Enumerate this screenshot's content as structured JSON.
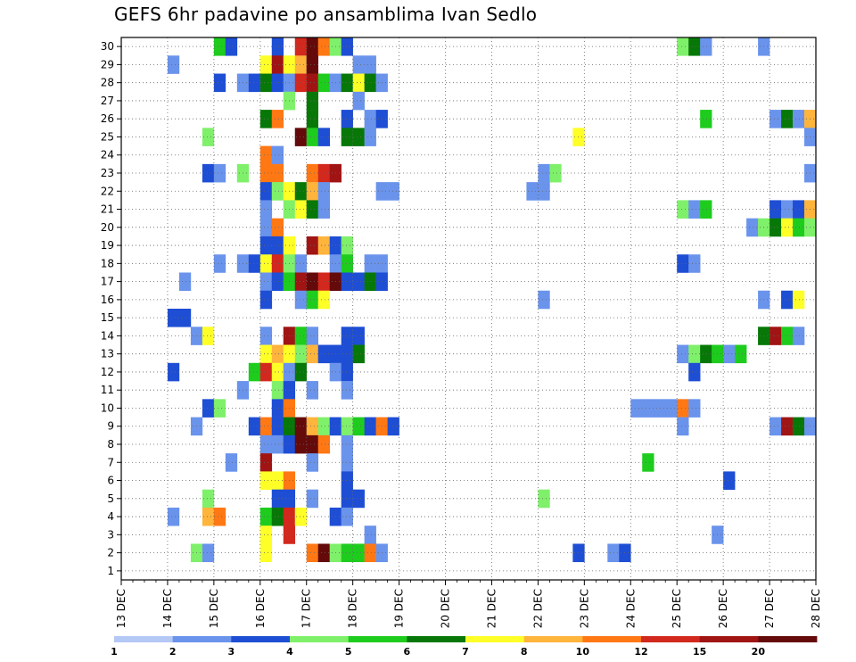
{
  "chart_data": {
    "type": "heatmap",
    "title": "GEFS 6hr padavine po ansamblima Ivan Sedlo",
    "xlabel": "",
    "ylabel": "",
    "x_tick_labels": [
      "13 DEC",
      "14 DEC",
      "15 DEC",
      "16 DEC",
      "17 DEC",
      "18 DEC",
      "19 DEC",
      "20 DEC",
      "21 DEC",
      "22 DEC",
      "23 DEC",
      "24 DEC",
      "25 DEC",
      "26 DEC",
      "27 DEC",
      "28 DEC"
    ],
    "x_unit": "6-hour steps starting 13 DEC 00z",
    "x_range": [
      0,
      60
    ],
    "y_tick_labels": [
      "1",
      "2",
      "3",
      "4",
      "5",
      "6",
      "7",
      "8",
      "9",
      "10",
      "11",
      "12",
      "13",
      "14",
      "15",
      "16",
      "17",
      "18",
      "19",
      "20",
      "21",
      "22",
      "23",
      "24",
      "25",
      "26",
      "27",
      "28",
      "29",
      "30"
    ],
    "y_range": [
      0,
      30
    ],
    "grid": true,
    "colorbar": {
      "boundaries": [
        "1",
        "2",
        "3",
        "4",
        "5",
        "6",
        "7",
        "8",
        "10",
        "12",
        "15",
        "20"
      ],
      "colors": [
        "#b4c8f5",
        "#6a93ec",
        "#1e4ed4",
        "#7ff06a",
        "#1ecc1e",
        "#077807",
        "#ffff28",
        "#ffb43c",
        "#ff7814",
        "#d2281e",
        "#a01414",
        "#640a0a"
      ]
    },
    "cells": [
      [
        30,
        8,
        4
      ],
      [
        30,
        9,
        2
      ],
      [
        30,
        13,
        2
      ],
      [
        30,
        15,
        9
      ],
      [
        30,
        16,
        11
      ],
      [
        30,
        17,
        8
      ],
      [
        30,
        18,
        3
      ],
      [
        30,
        19,
        2
      ],
      [
        30,
        48,
        3
      ],
      [
        30,
        49,
        5
      ],
      [
        30,
        50,
        1
      ],
      [
        30,
        55,
        1
      ],
      [
        29,
        4,
        1
      ],
      [
        29,
        12,
        6
      ],
      [
        29,
        13,
        10
      ],
      [
        29,
        14,
        6
      ],
      [
        29,
        15,
        7
      ],
      [
        29,
        16,
        11
      ],
      [
        29,
        20,
        1
      ],
      [
        29,
        21,
        1
      ],
      [
        28,
        8,
        2
      ],
      [
        28,
        10,
        1
      ],
      [
        28,
        11,
        2
      ],
      [
        28,
        12,
        5
      ],
      [
        28,
        13,
        2
      ],
      [
        28,
        14,
        1
      ],
      [
        28,
        15,
        9
      ],
      [
        28,
        16,
        10
      ],
      [
        28,
        17,
        4
      ],
      [
        28,
        18,
        1
      ],
      [
        28,
        19,
        5
      ],
      [
        28,
        20,
        6
      ],
      [
        28,
        21,
        5
      ],
      [
        28,
        22,
        1
      ],
      [
        27,
        14,
        3
      ],
      [
        27,
        16,
        5
      ],
      [
        27,
        20,
        1
      ],
      [
        26,
        12,
        5
      ],
      [
        26,
        13,
        8
      ],
      [
        26,
        16,
        5
      ],
      [
        26,
        19,
        2
      ],
      [
        26,
        21,
        1
      ],
      [
        26,
        22,
        2
      ],
      [
        26,
        50,
        4
      ],
      [
        26,
        56,
        1
      ],
      [
        26,
        57,
        5
      ],
      [
        26,
        58,
        1
      ],
      [
        26,
        59,
        7
      ],
      [
        25,
        7,
        3
      ],
      [
        25,
        15,
        11
      ],
      [
        25,
        16,
        4
      ],
      [
        25,
        17,
        2
      ],
      [
        25,
        19,
        5
      ],
      [
        25,
        20,
        5
      ],
      [
        25,
        21,
        1
      ],
      [
        25,
        39,
        6
      ],
      [
        25,
        59,
        1
      ],
      [
        24,
        12,
        8
      ],
      [
        24,
        13,
        1
      ],
      [
        23,
        7,
        2
      ],
      [
        23,
        8,
        1
      ],
      [
        23,
        10,
        3
      ],
      [
        23,
        12,
        8
      ],
      [
        23,
        13,
        8
      ],
      [
        23,
        16,
        8
      ],
      [
        23,
        17,
        9
      ],
      [
        23,
        18,
        10
      ],
      [
        23,
        36,
        1
      ],
      [
        23,
        37,
        3
      ],
      [
        23,
        59,
        1
      ],
      [
        22,
        12,
        2
      ],
      [
        22,
        13,
        3
      ],
      [
        22,
        14,
        6
      ],
      [
        22,
        15,
        5
      ],
      [
        22,
        16,
        7
      ],
      [
        22,
        17,
        1
      ],
      [
        22,
        22,
        1
      ],
      [
        22,
        23,
        1
      ],
      [
        22,
        35,
        1
      ],
      [
        22,
        36,
        1
      ],
      [
        21,
        12,
        1
      ],
      [
        21,
        14,
        3
      ],
      [
        21,
        15,
        6
      ],
      [
        21,
        16,
        5
      ],
      [
        21,
        17,
        1
      ],
      [
        21,
        48,
        3
      ],
      [
        21,
        49,
        1
      ],
      [
        21,
        50,
        4
      ],
      [
        21,
        56,
        2
      ],
      [
        21,
        57,
        1
      ],
      [
        21,
        58,
        2
      ],
      [
        21,
        59,
        7
      ],
      [
        20,
        12,
        1
      ],
      [
        20,
        13,
        8
      ],
      [
        20,
        54,
        1
      ],
      [
        20,
        55,
        3
      ],
      [
        20,
        56,
        5
      ],
      [
        20,
        57,
        6
      ],
      [
        20,
        58,
        4
      ],
      [
        20,
        59,
        3
      ],
      [
        19,
        12,
        2
      ],
      [
        19,
        13,
        2
      ],
      [
        19,
        14,
        6
      ],
      [
        19,
        16,
        10
      ],
      [
        19,
        17,
        7
      ],
      [
        19,
        18,
        2
      ],
      [
        19,
        19,
        3
      ],
      [
        18,
        8,
        1
      ],
      [
        18,
        10,
        1
      ],
      [
        18,
        11,
        2
      ],
      [
        18,
        12,
        6
      ],
      [
        18,
        13,
        9
      ],
      [
        18,
        14,
        3
      ],
      [
        18,
        15,
        1
      ],
      [
        18,
        18,
        1
      ],
      [
        18,
        19,
        4
      ],
      [
        18,
        21,
        1
      ],
      [
        18,
        22,
        1
      ],
      [
        18,
        48,
        2
      ],
      [
        18,
        49,
        1
      ],
      [
        17,
        5,
        1
      ],
      [
        17,
        12,
        1
      ],
      [
        17,
        13,
        2
      ],
      [
        17,
        14,
        4
      ],
      [
        17,
        15,
        10
      ],
      [
        17,
        16,
        11
      ],
      [
        17,
        17,
        9
      ],
      [
        17,
        18,
        11
      ],
      [
        17,
        19,
        2
      ],
      [
        17,
        20,
        2
      ],
      [
        17,
        21,
        5
      ],
      [
        17,
        22,
        2
      ],
      [
        16,
        12,
        2
      ],
      [
        16,
        15,
        1
      ],
      [
        16,
        16,
        4
      ],
      [
        16,
        17,
        6
      ],
      [
        16,
        36,
        1
      ],
      [
        16,
        55,
        1
      ],
      [
        16,
        57,
        2
      ],
      [
        16,
        58,
        6
      ],
      [
        15,
        4,
        2
      ],
      [
        15,
        5,
        2
      ],
      [
        14,
        6,
        1
      ],
      [
        14,
        7,
        6
      ],
      [
        14,
        12,
        1
      ],
      [
        14,
        14,
        10
      ],
      [
        14,
        15,
        4
      ],
      [
        14,
        16,
        1
      ],
      [
        14,
        19,
        2
      ],
      [
        14,
        20,
        2
      ],
      [
        14,
        55,
        5
      ],
      [
        14,
        56,
        10
      ],
      [
        14,
        57,
        4
      ],
      [
        14,
        58,
        1
      ],
      [
        13,
        12,
        6
      ],
      [
        13,
        13,
        7
      ],
      [
        13,
        14,
        6
      ],
      [
        13,
        15,
        3
      ],
      [
        13,
        16,
        7
      ],
      [
        13,
        17,
        2
      ],
      [
        13,
        18,
        2
      ],
      [
        13,
        19,
        2
      ],
      [
        13,
        20,
        5
      ],
      [
        13,
        48,
        1
      ],
      [
        13,
        49,
        3
      ],
      [
        13,
        50,
        5
      ],
      [
        13,
        51,
        4
      ],
      [
        13,
        52,
        1
      ],
      [
        13,
        53,
        4
      ],
      [
        12,
        4,
        2
      ],
      [
        12,
        11,
        4
      ],
      [
        12,
        12,
        9
      ],
      [
        12,
        13,
        6
      ],
      [
        12,
        14,
        1
      ],
      [
        12,
        15,
        5
      ],
      [
        12,
        18,
        1
      ],
      [
        12,
        19,
        2
      ],
      [
        12,
        49,
        2
      ],
      [
        11,
        10,
        1
      ],
      [
        11,
        13,
        3
      ],
      [
        11,
        14,
        2
      ],
      [
        11,
        16,
        1
      ],
      [
        11,
        19,
        1
      ],
      [
        10,
        7,
        2
      ],
      [
        10,
        8,
        3
      ],
      [
        10,
        13,
        2
      ],
      [
        10,
        14,
        8
      ],
      [
        10,
        44,
        1
      ],
      [
        10,
        45,
        1
      ],
      [
        10,
        46,
        1
      ],
      [
        10,
        47,
        1
      ],
      [
        10,
        48,
        8
      ],
      [
        10,
        49,
        1
      ],
      [
        9,
        6,
        1
      ],
      [
        9,
        11,
        2
      ],
      [
        9,
        12,
        8
      ],
      [
        9,
        13,
        2
      ],
      [
        9,
        14,
        5
      ],
      [
        9,
        15,
        11
      ],
      [
        9,
        16,
        7
      ],
      [
        9,
        17,
        3
      ],
      [
        9,
        18,
        2
      ],
      [
        9,
        19,
        3
      ],
      [
        9,
        20,
        4
      ],
      [
        9,
        21,
        2
      ],
      [
        9,
        22,
        8
      ],
      [
        9,
        23,
        2
      ],
      [
        9,
        48,
        1
      ],
      [
        9,
        56,
        1
      ],
      [
        9,
        57,
        10
      ],
      [
        9,
        58,
        5
      ],
      [
        9,
        59,
        1
      ],
      [
        8,
        12,
        1
      ],
      [
        8,
        13,
        1
      ],
      [
        8,
        14,
        2
      ],
      [
        8,
        15,
        11
      ],
      [
        8,
        16,
        11
      ],
      [
        8,
        17,
        8
      ],
      [
        8,
        19,
        1
      ],
      [
        7,
        9,
        1
      ],
      [
        7,
        12,
        10
      ],
      [
        7,
        16,
        1
      ],
      [
        7,
        19,
        1
      ],
      [
        7,
        45,
        4
      ],
      [
        6,
        12,
        6
      ],
      [
        6,
        13,
        6
      ],
      [
        6,
        14,
        8
      ],
      [
        6,
        19,
        2
      ],
      [
        6,
        52,
        2
      ],
      [
        5,
        7,
        3
      ],
      [
        5,
        13,
        2
      ],
      [
        5,
        14,
        2
      ],
      [
        5,
        16,
        1
      ],
      [
        5,
        19,
        2
      ],
      [
        5,
        20,
        2
      ],
      [
        5,
        36,
        3
      ],
      [
        4,
        4,
        1
      ],
      [
        4,
        7,
        7
      ],
      [
        4,
        8,
        8
      ],
      [
        4,
        12,
        4
      ],
      [
        4,
        13,
        5
      ],
      [
        4,
        14,
        9
      ],
      [
        4,
        15,
        6
      ],
      [
        4,
        18,
        2
      ],
      [
        4,
        19,
        1
      ],
      [
        3,
        12,
        6
      ],
      [
        3,
        14,
        9
      ],
      [
        3,
        21,
        1
      ],
      [
        3,
        51,
        1
      ],
      [
        2,
        6,
        3
      ],
      [
        2,
        7,
        1
      ],
      [
        2,
        12,
        6
      ],
      [
        2,
        16,
        8
      ],
      [
        2,
        17,
        11
      ],
      [
        2,
        18,
        3
      ],
      [
        2,
        19,
        4
      ],
      [
        2,
        20,
        4
      ],
      [
        2,
        21,
        8
      ],
      [
        2,
        22,
        1
      ],
      [
        2,
        39,
        2
      ],
      [
        2,
        42,
        1
      ],
      [
        2,
        43,
        2
      ]
    ]
  }
}
